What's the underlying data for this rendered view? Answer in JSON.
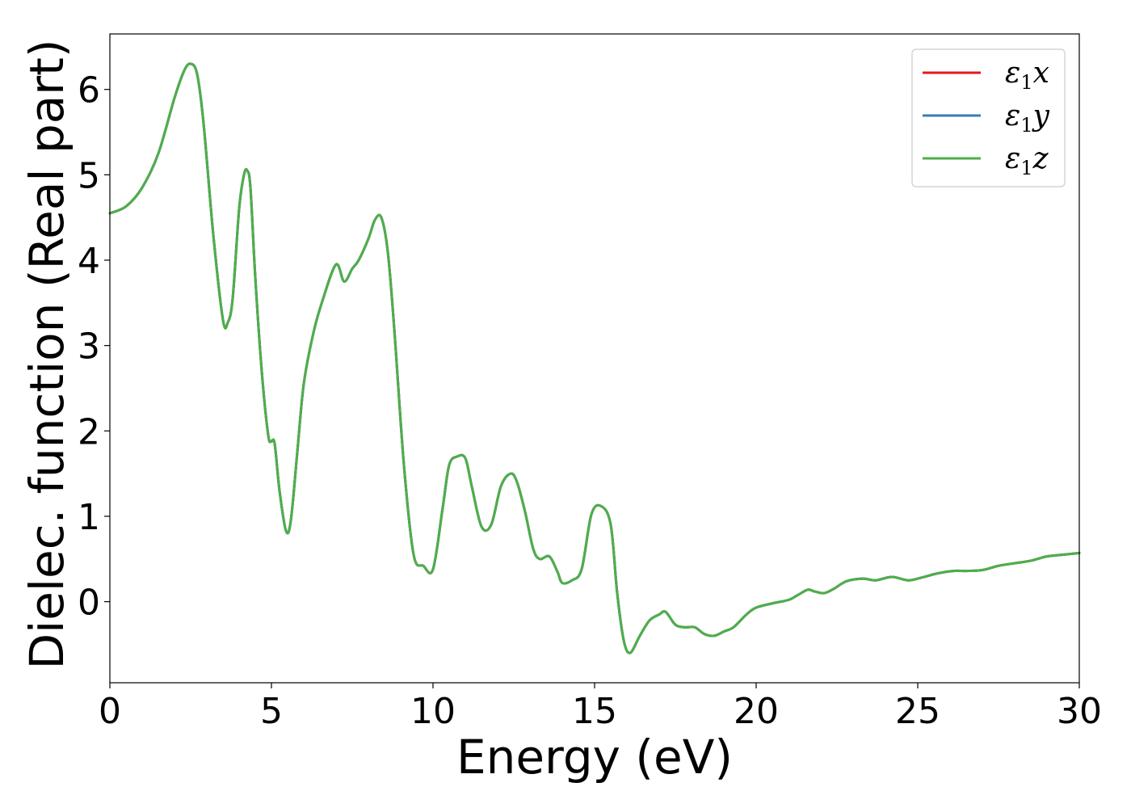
{
  "chart_data": {
    "type": "line",
    "title": "",
    "xlabel": "Energy (eV)",
    "ylabel": "Dielec. function (Real part)",
    "xlim": [
      0,
      30
    ],
    "ylim": [
      -0.95,
      6.65
    ],
    "xticks": [
      0,
      5,
      10,
      15,
      20,
      25,
      30
    ],
    "yticks": [
      0,
      1,
      2,
      3,
      4,
      5,
      6
    ],
    "grid": false,
    "legend_position": "top-right",
    "series": [
      {
        "name": "ε₁x",
        "label_base": "ε",
        "label_sub": "1",
        "label_tail": "x",
        "color": "#e41a1c",
        "x": [
          0,
          0.5,
          1,
          1.5,
          2,
          2.3,
          2.5,
          2.7,
          2.9,
          3.2,
          3.5,
          3.65,
          3.8,
          4,
          4.15,
          4.25,
          4.35,
          4.5,
          4.7,
          4.9,
          5,
          5.1,
          5.25,
          5.45,
          5.6,
          5.8,
          6,
          6.3,
          6.6,
          7,
          7.25,
          7.5,
          7.7,
          8,
          8.2,
          8.4,
          8.6,
          8.8,
          9.1,
          9.4,
          9.7,
          10,
          10.3,
          10.5,
          10.75,
          11,
          11.2,
          11.5,
          11.8,
          12.1,
          12.4,
          12.6,
          12.85,
          13.1,
          13.3,
          13.6,
          13.85,
          14,
          14.3,
          14.6,
          14.9,
          15.2,
          15.5,
          15.7,
          15.9,
          16.1,
          16.4,
          16.7,
          17,
          17.2,
          17.5,
          17.8,
          18.1,
          18.4,
          18.7,
          19,
          19.3,
          19.7,
          20,
          20.5,
          21,
          21.3,
          21.6,
          21.8,
          22.1,
          22.4,
          22.8,
          23.3,
          23.7,
          24.2,
          24.7,
          25.1,
          25.6,
          26.1,
          26.5,
          27,
          27.5,
          28,
          28.5,
          29,
          29.5,
          30
        ],
        "y": [
          4.55,
          4.63,
          4.85,
          5.25,
          5.9,
          6.22,
          6.3,
          6.18,
          5.6,
          4.3,
          3.3,
          3.27,
          3.55,
          4.6,
          5.0,
          5.05,
          4.85,
          3.8,
          2.7,
          1.95,
          1.88,
          1.85,
          1.3,
          0.83,
          0.95,
          1.75,
          2.55,
          3.15,
          3.55,
          3.95,
          3.75,
          3.9,
          4.0,
          4.25,
          4.47,
          4.5,
          4.1,
          3.2,
          1.6,
          0.55,
          0.42,
          0.38,
          1.1,
          1.6,
          1.7,
          1.68,
          1.35,
          0.88,
          0.9,
          1.35,
          1.5,
          1.4,
          1.05,
          0.62,
          0.5,
          0.53,
          0.35,
          0.22,
          0.25,
          0.38,
          1.02,
          1.12,
          0.9,
          0.1,
          -0.45,
          -0.6,
          -0.4,
          -0.22,
          -0.15,
          -0.12,
          -0.27,
          -0.3,
          -0.3,
          -0.38,
          -0.4,
          -0.35,
          -0.3,
          -0.15,
          -0.07,
          -0.02,
          0.02,
          0.08,
          0.14,
          0.12,
          0.1,
          0.15,
          0.24,
          0.27,
          0.25,
          0.29,
          0.25,
          0.28,
          0.33,
          0.36,
          0.36,
          0.37,
          0.42,
          0.45,
          0.48,
          0.53,
          0.55,
          0.57
        ]
      },
      {
        "name": "ε₁y",
        "label_base": "ε",
        "label_sub": "1",
        "label_tail": "y",
        "color": "#377eb8",
        "same_as": 0
      },
      {
        "name": "ε₁z",
        "label_base": "ε",
        "label_sub": "1",
        "label_tail": "z",
        "color": "#4daf4a",
        "same_as": 0
      }
    ]
  }
}
